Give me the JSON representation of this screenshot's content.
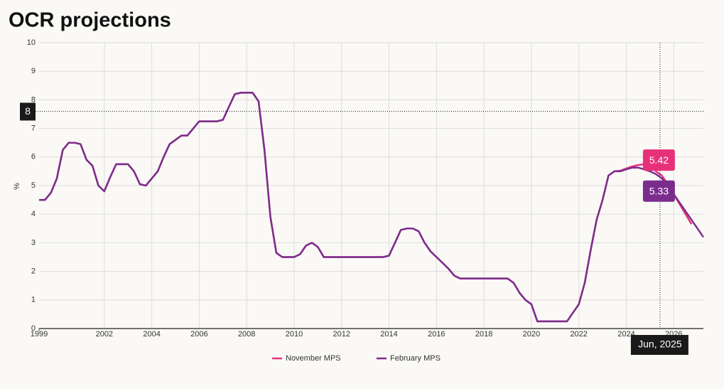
{
  "chart_data": {
    "type": "line",
    "title": "OCR projections",
    "y_label": "%",
    "x": [
      1999.25,
      1999.5,
      1999.75,
      2000,
      2000.25,
      2000.5,
      2000.75,
      2001,
      2001.25,
      2001.5,
      2001.75,
      2002,
      2002.25,
      2002.5,
      2002.75,
      2003,
      2003.25,
      2003.5,
      2003.75,
      2004,
      2004.25,
      2004.5,
      2004.75,
      2005,
      2005.25,
      2005.5,
      2005.75,
      2006,
      2006.25,
      2006.5,
      2006.75,
      2007,
      2007.25,
      2007.5,
      2007.75,
      2008,
      2008.25,
      2008.5,
      2008.75,
      2009,
      2009.25,
      2009.5,
      2009.75,
      2010,
      2010.25,
      2010.5,
      2010.75,
      2011,
      2011.25,
      2011.5,
      2011.75,
      2012,
      2012.25,
      2012.5,
      2012.75,
      2013,
      2013.25,
      2013.5,
      2013.75,
      2014,
      2014.25,
      2014.5,
      2014.75,
      2015,
      2015.25,
      2015.5,
      2015.75,
      2016,
      2016.25,
      2016.5,
      2016.75,
      2017,
      2017.25,
      2017.5,
      2017.75,
      2018,
      2018.25,
      2018.5,
      2018.75,
      2019,
      2019.25,
      2019.5,
      2019.75,
      2020,
      2020.25,
      2020.5,
      2020.75,
      2021,
      2021.25,
      2021.5,
      2021.75,
      2022,
      2022.25,
      2022.5,
      2022.75,
      2023,
      2023.25,
      2023.5,
      2023.75,
      2024,
      2024.25,
      2024.5,
      2024.75,
      2025,
      2025.25,
      2025.5,
      2025.75,
      2026,
      2026.25,
      2026.5,
      2026.75,
      2027,
      2027.25
    ],
    "series": [
      {
        "name": "November MPS",
        "color": "#e6317a",
        "values": [
          4.5,
          4.5,
          4.75,
          5.25,
          6.25,
          6.5,
          6.5,
          6.45,
          5.9,
          5.7,
          5.0,
          4.8,
          5.3,
          5.75,
          5.75,
          5.75,
          5.5,
          5.05,
          5.0,
          5.25,
          5.5,
          6.0,
          6.45,
          6.6,
          6.75,
          6.75,
          7.0,
          7.25,
          7.25,
          7.25,
          7.25,
          7.3,
          7.75,
          8.2,
          8.25,
          8.25,
          8.25,
          7.95,
          6.25,
          3.9,
          2.65,
          2.5,
          2.5,
          2.5,
          2.6,
          2.9,
          3.0,
          2.85,
          2.5,
          2.5,
          2.5,
          2.5,
          2.5,
          2.5,
          2.5,
          2.5,
          2.5,
          2.5,
          2.5,
          2.55,
          3.0,
          3.45,
          3.5,
          3.5,
          3.4,
          3.0,
          2.7,
          2.5,
          2.3,
          2.1,
          1.85,
          1.75,
          1.75,
          1.75,
          1.75,
          1.75,
          1.75,
          1.75,
          1.75,
          1.75,
          1.6,
          1.25,
          1.0,
          0.85,
          0.25,
          0.25,
          0.25,
          0.25,
          0.25,
          0.25,
          0.55,
          0.85,
          1.6,
          2.75,
          3.8,
          4.5,
          5.35,
          5.5,
          5.52,
          5.6,
          5.67,
          5.72,
          5.75,
          5.7,
          5.5,
          5.35,
          5.05,
          4.7,
          4.35,
          4.0,
          3.65,
          null,
          null
        ]
      },
      {
        "name": "February MPS",
        "color": "#7b2d8e",
        "values": [
          4.5,
          4.5,
          4.75,
          5.25,
          6.25,
          6.5,
          6.5,
          6.45,
          5.9,
          5.7,
          5.0,
          4.8,
          5.3,
          5.75,
          5.75,
          5.75,
          5.5,
          5.05,
          5.0,
          5.25,
          5.5,
          6.0,
          6.45,
          6.6,
          6.75,
          6.75,
          7.0,
          7.25,
          7.25,
          7.25,
          7.25,
          7.3,
          7.75,
          8.2,
          8.25,
          8.25,
          8.25,
          7.95,
          6.25,
          3.9,
          2.65,
          2.5,
          2.5,
          2.5,
          2.6,
          2.9,
          3.0,
          2.85,
          2.5,
          2.5,
          2.5,
          2.5,
          2.5,
          2.5,
          2.5,
          2.5,
          2.5,
          2.5,
          2.5,
          2.55,
          3.0,
          3.45,
          3.5,
          3.5,
          3.4,
          3.0,
          2.7,
          2.5,
          2.3,
          2.1,
          1.85,
          1.75,
          1.75,
          1.75,
          1.75,
          1.75,
          1.75,
          1.75,
          1.75,
          1.75,
          1.6,
          1.25,
          1.0,
          0.85,
          0.25,
          0.25,
          0.25,
          0.25,
          0.25,
          0.25,
          0.55,
          0.85,
          1.6,
          2.75,
          3.8,
          4.5,
          5.35,
          5.5,
          5.5,
          5.57,
          5.63,
          5.63,
          5.57,
          5.5,
          5.4,
          5.25,
          5.0,
          4.7,
          4.4,
          4.1,
          3.8,
          3.5,
          3.2
        ]
      }
    ],
    "xlim": [
      1999.25,
      2027.25
    ],
    "xticks": [
      {
        "value": 1999.25,
        "label": "1999"
      },
      2002,
      2004,
      2006,
      2008,
      2010,
      2012,
      2014,
      2016,
      2018,
      2020,
      2022,
      2024,
      2026
    ],
    "ylim": [
      0,
      10
    ],
    "yticks": [
      0,
      1,
      2,
      3,
      4,
      5,
      6,
      7,
      8,
      9,
      10
    ],
    "grid": true,
    "crosshair": {
      "x": 2025.42,
      "label": "Jun, 2025",
      "y": {
        "value": 7.6,
        "label": "8"
      },
      "values": [
        5.42,
        5.33
      ]
    }
  }
}
